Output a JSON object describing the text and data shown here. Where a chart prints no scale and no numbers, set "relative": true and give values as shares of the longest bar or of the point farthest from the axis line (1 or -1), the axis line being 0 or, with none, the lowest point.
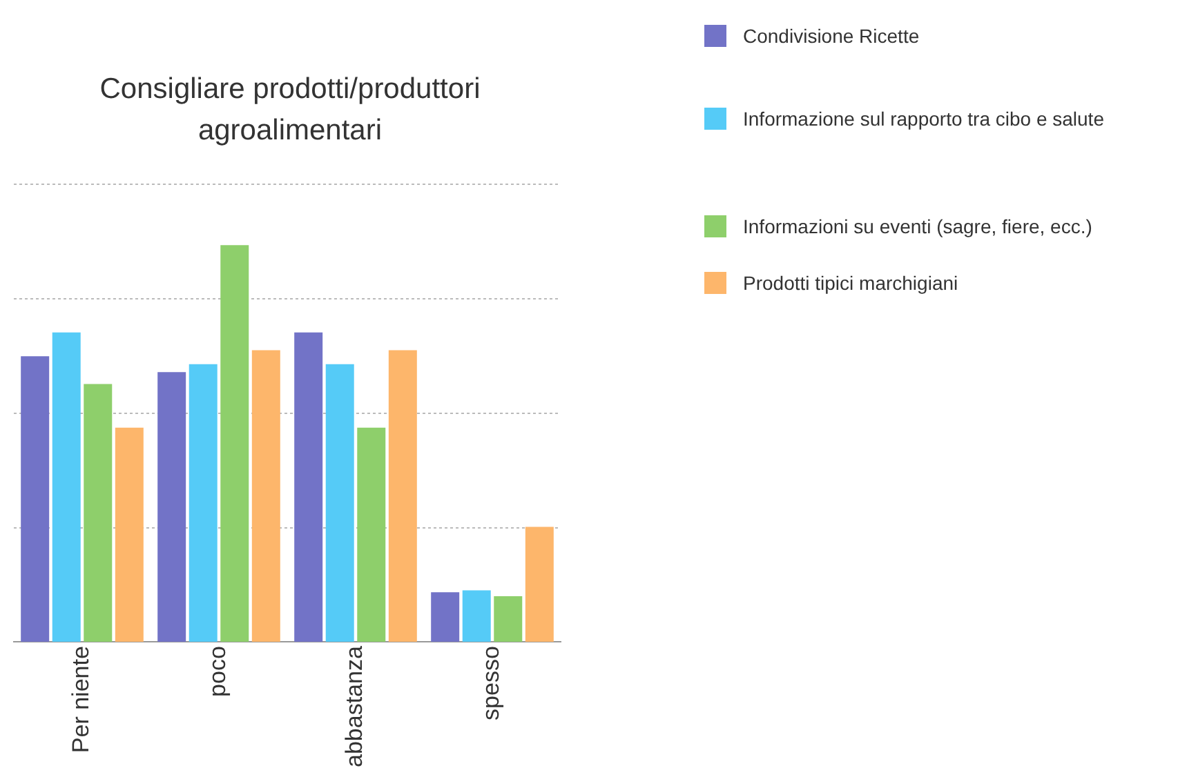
{
  "chart_data": {
    "type": "bar",
    "title": "Consigliare prodotti/produttori agroalimentari",
    "relative": true,
    "grid": "y",
    "legend": "top right",
    "categories": [
      "Per niente",
      "poco",
      "abbastanza",
      "spesso"
    ],
    "series": [
      {
        "name": "Condivisione Ricette",
        "color": "#7273c7",
        "values": [
          0.72,
          0.68,
          0.78,
          0.125
        ]
      },
      {
        "name": "Informazione sul rapporto tra cibo e salute",
        "color": "#55cbf7",
        "values": [
          0.78,
          0.7,
          0.7,
          0.13
        ]
      },
      {
        "name": "Informazioni su eventi (sagre, fiere, ecc.)",
        "color": "#8ecf6b",
        "values": [
          0.65,
          1,
          0.54,
          0.115
        ]
      },
      {
        "name": "Prodotti tipici marchigiani",
        "color": "#fdb66b",
        "values": [
          0.54,
          0.735,
          0.735,
          0.29
        ]
      }
    ]
  }
}
